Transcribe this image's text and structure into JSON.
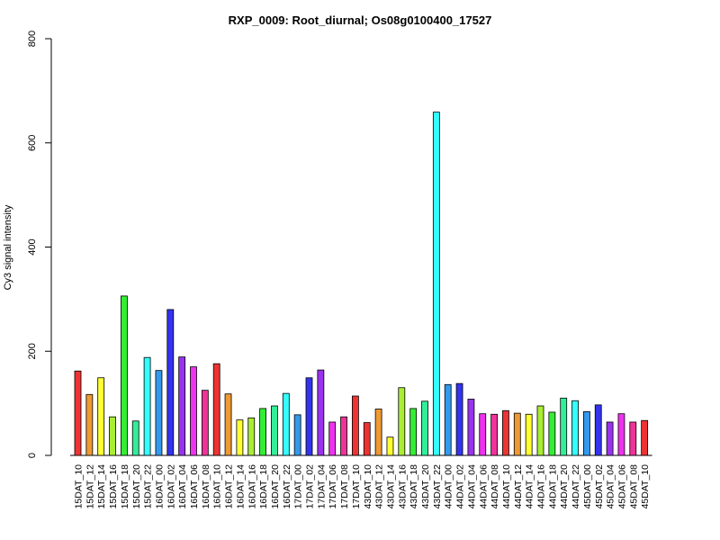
{
  "chart_data": {
    "type": "bar",
    "title": "RXP_0009: Root_diurnal; Os08g0100400_17527",
    "xlabel": "",
    "ylabel": "Cy3 signal intensity",
    "ylim": [
      0,
      800
    ],
    "yticks": [
      0,
      200,
      400,
      600,
      800
    ],
    "grid": false,
    "categories": [
      "15DAT_10",
      "15DAT_12",
      "15DAT_14",
      "15DAT_16",
      "15DAT_18",
      "15DAT_20",
      "15DAT_22",
      "16DAT_00",
      "16DAT_02",
      "16DAT_04",
      "16DAT_06",
      "16DAT_08",
      "16DAT_10",
      "16DAT_12",
      "16DAT_14",
      "16DAT_16",
      "16DAT_18",
      "16DAT_20",
      "16DAT_22",
      "17DAT_00",
      "17DAT_02",
      "17DAT_04",
      "17DAT_06",
      "17DAT_08",
      "17DAT_10",
      "43DAT_10",
      "43DAT_12",
      "43DAT_14",
      "43DAT_16",
      "43DAT_18",
      "43DAT_20",
      "43DAT_22",
      "44DAT_00",
      "44DAT_02",
      "44DAT_04",
      "44DAT_06",
      "44DAT_08",
      "44DAT_10",
      "44DAT_12",
      "44DAT_14",
      "44DAT_16",
      "44DAT_18",
      "44DAT_20",
      "44DAT_22",
      "45DAT_00",
      "45DAT_02",
      "45DAT_04",
      "45DAT_06",
      "45DAT_08",
      "45DAT_10"
    ],
    "values": [
      162,
      117,
      149,
      74,
      306,
      66,
      188,
      163,
      280,
      189,
      170,
      125,
      176,
      118,
      68,
      72,
      90,
      95,
      119,
      78,
      149,
      164,
      64,
      74,
      114,
      63,
      89,
      35,
      130,
      90,
      104,
      659,
      136,
      138,
      108,
      80,
      79,
      86,
      81,
      79,
      95,
      83,
      110,
      105,
      84,
      97,
      64,
      80,
      64,
      67
    ],
    "colors": [
      "#ee3333",
      "#ee9933",
      "#ffff33",
      "#aaee33",
      "#33ee33",
      "#33ee99",
      "#33ffff",
      "#3399ee",
      "#3333ee",
      "#9933ee",
      "#ee33ee",
      "#ee3399",
      "#ee3333",
      "#ee9933",
      "#ffff33",
      "#aaee33",
      "#33ee33",
      "#33ee99",
      "#33ffff",
      "#3399ee",
      "#3333ee",
      "#9933ee",
      "#ee33ee",
      "#ee3399",
      "#ee3333",
      "#ee3333",
      "#ee9933",
      "#ffff33",
      "#aaee33",
      "#33ee33",
      "#33ee99",
      "#33ffff",
      "#3399ee",
      "#3333ee",
      "#9933ee",
      "#ee33ee",
      "#ee3399",
      "#ee3333",
      "#ee9933",
      "#ffff33",
      "#aaee33",
      "#33ee33",
      "#33ee99",
      "#33ffff",
      "#3399ee",
      "#3333ee",
      "#9933ee",
      "#ee33ee",
      "#ee3399",
      "#ee3333"
    ]
  }
}
